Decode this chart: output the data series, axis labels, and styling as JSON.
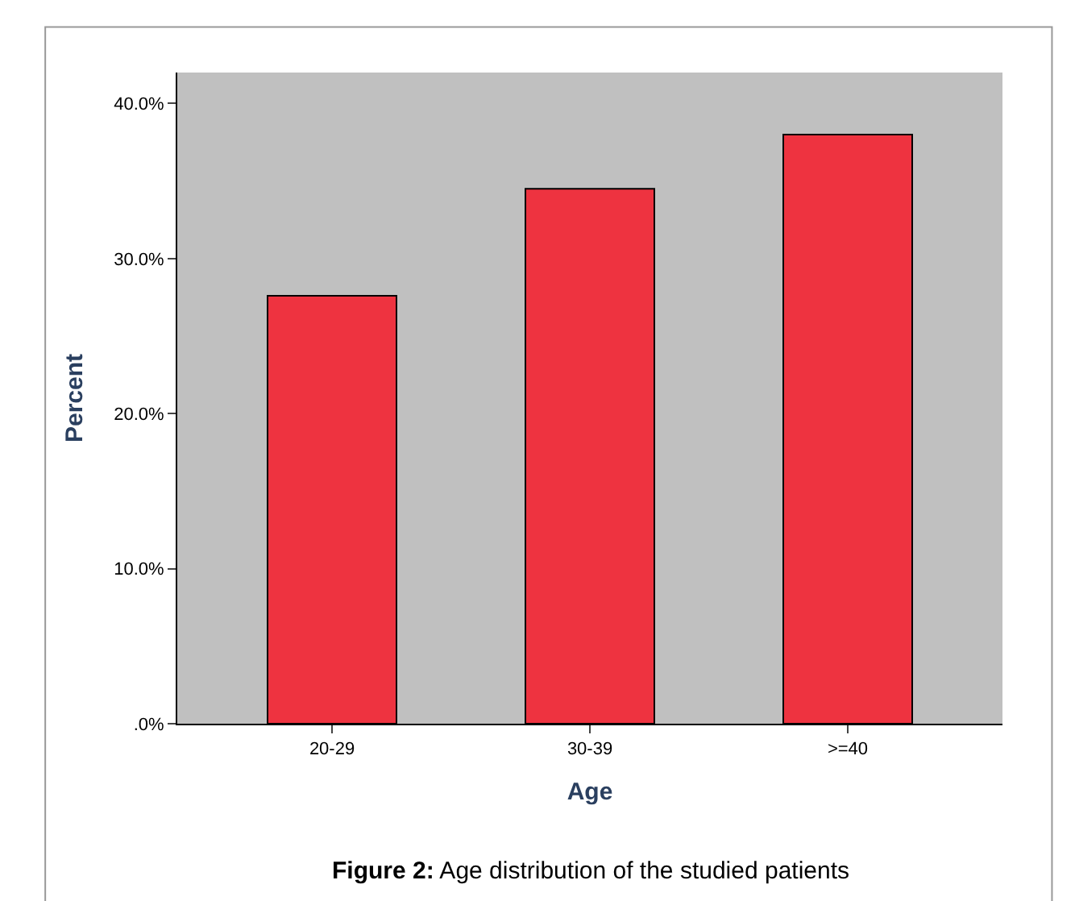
{
  "chart_data": {
    "type": "bar",
    "xlabel": "Age",
    "ylabel": "Percent",
    "categories": [
      "20-29",
      "30-39",
      ">=40"
    ],
    "values": [
      27.6,
      34.5,
      38.0
    ],
    "color": "#ee3340",
    "ylim": [
      0,
      42
    ],
    "yticks": [
      {
        "value": 0,
        "label": ".0%"
      },
      {
        "value": 10,
        "label": "10.0%"
      },
      {
        "value": 20,
        "label": "20.0%"
      },
      {
        "value": 30,
        "label": "30.0%"
      },
      {
        "value": 40,
        "label": "40.0%"
      }
    ],
    "grid": false,
    "legend": false,
    "annotations": [
      "Figure 2: Age distribution of the studied patients"
    ]
  }
}
